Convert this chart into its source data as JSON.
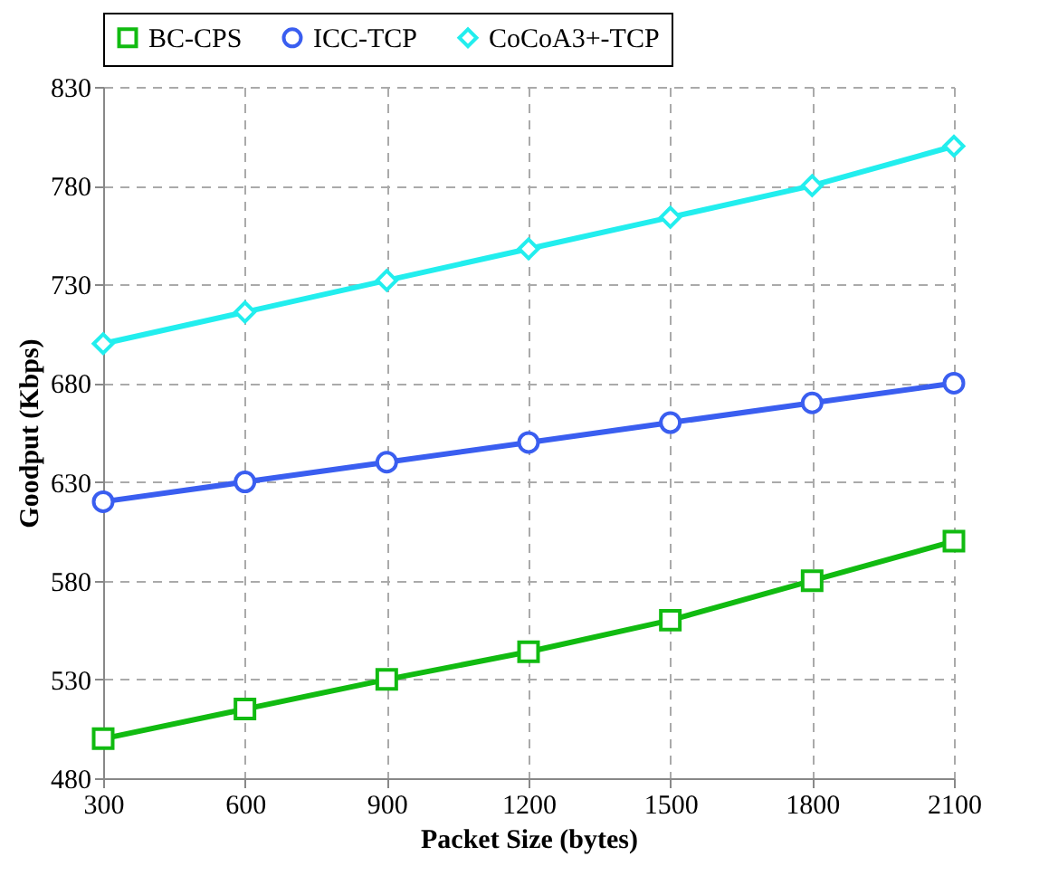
{
  "chart_data": {
    "type": "line",
    "xlabel": "Packet Size (bytes)",
    "ylabel": "Goodput (Kbps)",
    "x": [
      300,
      600,
      900,
      1200,
      1500,
      1800,
      2100
    ],
    "xlim": [
      300,
      2100
    ],
    "xticks": [
      300,
      600,
      900,
      1200,
      1500,
      1800,
      2100
    ],
    "ylim": [
      480,
      830
    ],
    "yticks": [
      480,
      530,
      580,
      630,
      680,
      730,
      780,
      830
    ],
    "grid": true,
    "legend": "top",
    "line_style": "solid",
    "series": [
      {
        "name": "BC-CPS",
        "color": "#11bb11",
        "marker": "square",
        "values": [
          500,
          515,
          530,
          544,
          560,
          580,
          600
        ]
      },
      {
        "name": "ICC-TCP",
        "color": "#3a5ef0",
        "marker": "circle",
        "values": [
          620,
          630,
          640,
          650,
          660,
          670,
          680
        ]
      },
      {
        "name": "CoCoA3+-TCP",
        "color": "#22eeee",
        "marker": "diamond",
        "values": [
          700,
          716,
          732,
          748,
          764,
          780,
          800
        ]
      }
    ]
  }
}
